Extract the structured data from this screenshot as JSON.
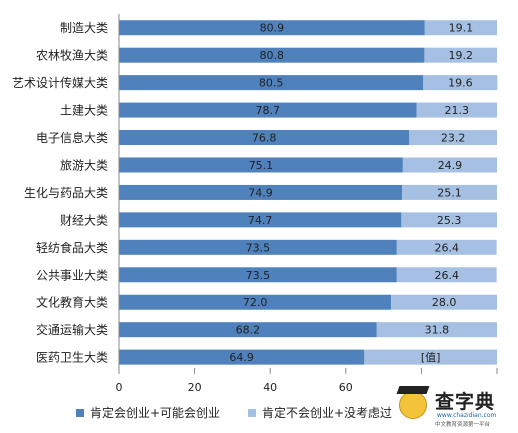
{
  "chart_data": {
    "type": "bar",
    "stacked": true,
    "orientation": "horizontal",
    "percent_scale": true,
    "categories": [
      "制造大类",
      "农林牧渔大类",
      "艺术设计传媒大类",
      "土建大类",
      "电子信息大类",
      "旅游大类",
      "生化与药品大类",
      "财经大类",
      "轻纺食品大类",
      "公共事业大类",
      "文化教育大类",
      "交通运输大类",
      "医药卫生大类"
    ],
    "series": [
      {
        "name": "肯定会创业+可能会创业",
        "color": "#4f81bd",
        "values": [
          80.9,
          80.8,
          80.5,
          78.7,
          76.8,
          75.1,
          74.9,
          74.7,
          73.5,
          73.5,
          72.0,
          68.2,
          64.9
        ],
        "labels": [
          "80.9",
          "80.8",
          "80.5",
          "78.7",
          "76.8",
          "75.1",
          "74.9",
          "74.7",
          "73.5",
          "73.5",
          "72.0",
          "68.2",
          "64.9"
        ]
      },
      {
        "name": "肯定不会创业+没考虑过",
        "color": "#a5c0e3",
        "values": [
          19.1,
          19.2,
          19.6,
          21.3,
          23.2,
          24.9,
          25.1,
          25.3,
          26.4,
          26.4,
          28.0,
          31.8,
          35.1
        ],
        "labels": [
          "19.1",
          "19.2",
          "19.6",
          "21.3",
          "23.2",
          "24.9",
          "25.1",
          "25.3",
          "26.4",
          "26.4",
          "28.0",
          "31.8",
          "[值]"
        ]
      }
    ],
    "xticks": [
      "0",
      "20",
      "40",
      "60",
      "80",
      "100"
    ],
    "xlim": [
      0,
      100
    ],
    "grid": false,
    "legend_position": "bottom"
  },
  "logo": {
    "title": "查字典",
    "url": "www.chazidian.com",
    "tagline": "中文教育资源第一平台"
  }
}
